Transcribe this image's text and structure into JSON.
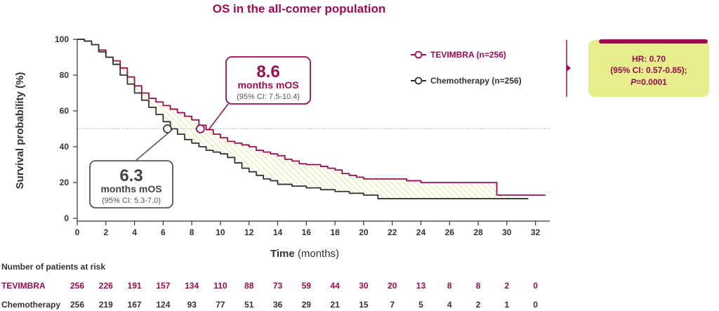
{
  "chart_data": {
    "type": "line",
    "title": "OS in the all-comer population",
    "xlabel_bold": "Time",
    "xlabel_rest": "(months)",
    "ylabel": "Survival probability (%)",
    "xlim": [
      0,
      33
    ],
    "ylim": [
      0,
      100
    ],
    "xticks": [
      0,
      2,
      4,
      6,
      8,
      10,
      12,
      14,
      16,
      18,
      20,
      22,
      24,
      26,
      28,
      30,
      32
    ],
    "yticks": [
      0,
      20,
      40,
      60,
      80,
      100
    ],
    "reference_line_y": 50,
    "series": [
      {
        "name": "TEVIMBRA (n=256)",
        "color": "#9a0c4f",
        "points": [
          [
            0,
            100
          ],
          [
            0.5,
            99
          ],
          [
            1,
            97
          ],
          [
            1.5,
            94
          ],
          [
            2,
            90
          ],
          [
            2.5,
            88
          ],
          [
            3,
            84
          ],
          [
            3.5,
            79
          ],
          [
            4,
            74
          ],
          [
            4.5,
            70
          ],
          [
            5,
            67
          ],
          [
            5.5,
            65
          ],
          [
            6,
            63
          ],
          [
            6.5,
            61
          ],
          [
            7,
            59
          ],
          [
            7.5,
            57
          ],
          [
            8,
            55
          ],
          [
            8.5,
            52
          ],
          [
            9,
            49.5
          ],
          [
            9.5,
            47
          ],
          [
            10,
            45
          ],
          [
            10.5,
            43
          ],
          [
            11,
            42
          ],
          [
            11.5,
            41
          ],
          [
            12,
            40
          ],
          [
            12.5,
            38
          ],
          [
            13,
            37
          ],
          [
            13.5,
            36
          ],
          [
            14,
            35
          ],
          [
            14.5,
            33
          ],
          [
            15,
            32
          ],
          [
            15.5,
            30.5
          ],
          [
            16,
            30
          ],
          [
            17,
            29
          ],
          [
            17.5,
            28
          ],
          [
            18,
            27
          ],
          [
            18.5,
            25
          ],
          [
            19,
            24
          ],
          [
            19.5,
            23
          ],
          [
            20,
            22
          ],
          [
            22,
            22
          ],
          [
            23,
            21
          ],
          [
            24,
            20
          ],
          [
            29.3,
            20
          ],
          [
            29.3,
            13
          ],
          [
            32.7,
            13
          ]
        ]
      },
      {
        "name": "Chemotherapy (n=256)",
        "color": "#333333",
        "points": [
          [
            0,
            100
          ],
          [
            0.5,
            99
          ],
          [
            1,
            97
          ],
          [
            1.5,
            93
          ],
          [
            2,
            90
          ],
          [
            2.5,
            86
          ],
          [
            3,
            80
          ],
          [
            3.5,
            75
          ],
          [
            4,
            70
          ],
          [
            4.5,
            66
          ],
          [
            5,
            62
          ],
          [
            5.5,
            58
          ],
          [
            6,
            54
          ],
          [
            6.5,
            50
          ],
          [
            7,
            47
          ],
          [
            7.5,
            44
          ],
          [
            8,
            42
          ],
          [
            8.5,
            40
          ],
          [
            9,
            38
          ],
          [
            9.5,
            37
          ],
          [
            10,
            36
          ],
          [
            10.5,
            34
          ],
          [
            11,
            31
          ],
          [
            11.5,
            28
          ],
          [
            12,
            26
          ],
          [
            12.5,
            24
          ],
          [
            13,
            22
          ],
          [
            13.5,
            21
          ],
          [
            14,
            19
          ],
          [
            15,
            18
          ],
          [
            16,
            17
          ],
          [
            17,
            16
          ],
          [
            18,
            15
          ],
          [
            19,
            14
          ],
          [
            20,
            13
          ],
          [
            21,
            11
          ],
          [
            29,
            11
          ],
          [
            31.5,
            11
          ]
        ]
      }
    ],
    "median_markers": [
      {
        "series": 0,
        "x": 8.6,
        "y": 50
      },
      {
        "series": 1,
        "x": 6.3,
        "y": 50
      }
    ]
  },
  "callouts": {
    "tev": {
      "value": "8.6",
      "label": "months mOS",
      "ci": "(95% CI: 7.5-10.4)"
    },
    "chemo": {
      "value": "6.3",
      "label": "months mOS",
      "ci": "(95% CI: 5.3-7.0)"
    }
  },
  "legend": {
    "tev": "TEVIMBRA (n=256)",
    "chemo": "Chemotherapy (n=256)"
  },
  "hr_box": {
    "line1": "HR: 0.70",
    "line2": "(95% CI: 0.57-0.85);",
    "p_label": "P",
    "p_value": "=0.0001",
    "fill": "#e6ee8c",
    "accent": "#9a0c4f"
  },
  "risk_table": {
    "header": "Number of patients at risk",
    "tev_label": "TEVIMBRA",
    "chemo_label": "Chemotherapy",
    "tev_values": [
      "256",
      "226",
      "191",
      "157",
      "134",
      "110",
      "88",
      "73",
      "59",
      "44",
      "30",
      "20",
      "13",
      "8",
      "8",
      "2",
      "0"
    ],
    "chemo_values": [
      "256",
      "219",
      "167",
      "124",
      "93",
      "77",
      "51",
      "36",
      "29",
      "21",
      "15",
      "7",
      "5",
      "4",
      "2",
      "1",
      "0"
    ]
  }
}
